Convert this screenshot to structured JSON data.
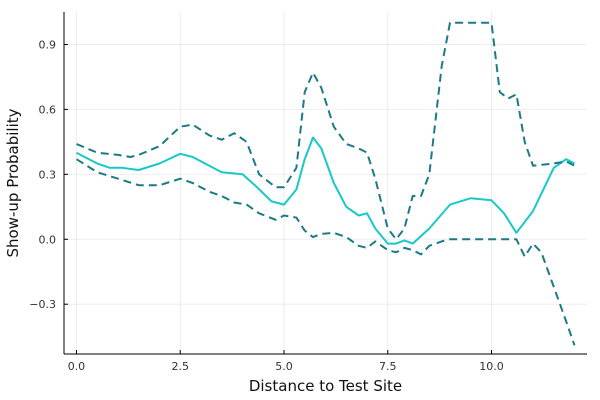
{
  "chart_data": {
    "type": "line",
    "title": "",
    "xlabel": "Distance to Test Site",
    "ylabel": "Show-up Probability",
    "xlim": [
      -0.3,
      12.3
    ],
    "ylim": [
      -0.53,
      1.05
    ],
    "xticks": [
      0,
      2.5,
      5,
      7.5,
      10
    ],
    "xtick_labels": [
      "0.0",
      "2.5",
      "5.0",
      "7.5",
      "10.0"
    ],
    "yticks": [
      -0.3,
      0,
      0.3,
      0.6,
      0.9
    ],
    "ytick_labels": [
      "−0.3",
      "0.0",
      "0.3",
      "0.6",
      "0.9"
    ],
    "grid": true,
    "legend": "none",
    "series": [
      {
        "style": "solid",
        "color": "#19c8c8",
        "x": [
          0,
          0.5,
          0.8,
          1.1,
          1.5,
          2.0,
          2.5,
          2.8,
          3.2,
          3.5,
          4.0,
          4.3,
          4.7,
          5.0,
          5.3,
          5.5,
          5.7,
          5.9,
          6.2,
          6.5,
          6.8,
          7.0,
          7.2,
          7.5,
          7.7,
          7.9,
          8.1,
          8.5,
          9.0,
          9.5,
          10.0,
          10.3,
          10.6,
          11.0,
          11.5,
          11.8,
          12.0
        ],
        "y": [
          0.4,
          0.35,
          0.33,
          0.33,
          0.32,
          0.35,
          0.395,
          0.38,
          0.34,
          0.31,
          0.3,
          0.25,
          0.175,
          0.16,
          0.23,
          0.37,
          0.47,
          0.42,
          0.26,
          0.15,
          0.11,
          0.12,
          0.05,
          -0.02,
          -0.02,
          -0.005,
          -0.02,
          0.05,
          0.16,
          0.19,
          0.18,
          0.12,
          0.03,
          0.13,
          0.33,
          0.37,
          0.35
        ]
      },
      {
        "style": "dashed",
        "color": "#1a7a8a",
        "x": [
          0,
          0.5,
          1.0,
          1.3,
          1.5,
          2.0,
          2.5,
          2.8,
          3.2,
          3.5,
          3.8,
          4.1,
          4.4,
          4.8,
          5.0,
          5.3,
          5.5,
          5.7,
          5.9,
          6.2,
          6.5,
          6.8,
          7.0,
          7.2,
          7.5,
          7.7,
          7.9,
          8.1,
          8.3,
          8.5,
          8.8,
          9.0,
          9.5,
          10.0,
          10.2,
          10.4,
          10.6,
          10.8,
          11.0,
          11.5,
          11.8,
          12.0
        ],
        "y": [
          0.44,
          0.4,
          0.39,
          0.38,
          0.39,
          0.43,
          0.52,
          0.53,
          0.48,
          0.46,
          0.49,
          0.45,
          0.3,
          0.24,
          0.24,
          0.33,
          0.68,
          0.77,
          0.7,
          0.52,
          0.44,
          0.42,
          0.4,
          0.28,
          0.05,
          0.0,
          0.05,
          0.2,
          0.2,
          0.3,
          0.8,
          1.0,
          1.0,
          1.0,
          0.68,
          0.65,
          0.67,
          0.45,
          0.34,
          0.35,
          0.36,
          0.34
        ]
      },
      {
        "style": "dashed",
        "color": "#1a7a8a",
        "x": [
          0,
          0.5,
          1.0,
          1.5,
          2.0,
          2.5,
          2.8,
          3.2,
          3.5,
          3.8,
          4.1,
          4.4,
          4.8,
          5.0,
          5.3,
          5.5,
          5.7,
          5.9,
          6.2,
          6.5,
          6.8,
          7.0,
          7.2,
          7.5,
          7.7,
          7.9,
          8.1,
          8.3,
          8.5,
          8.8,
          9.0,
          9.5,
          10.0,
          10.3,
          10.6,
          10.8,
          11.0,
          11.2,
          11.5,
          11.8,
          12.0
        ],
        "y": [
          0.37,
          0.31,
          0.28,
          0.25,
          0.25,
          0.28,
          0.26,
          0.22,
          0.2,
          0.17,
          0.16,
          0.12,
          0.09,
          0.11,
          0.1,
          0.04,
          0.01,
          0.025,
          0.03,
          0.01,
          -0.03,
          -0.04,
          -0.01,
          -0.05,
          -0.06,
          -0.04,
          -0.05,
          -0.07,
          -0.03,
          -0.01,
          0.0,
          0.0,
          0.0,
          0.0,
          0.0,
          -0.08,
          -0.02,
          -0.06,
          -0.22,
          -0.38,
          -0.49
        ]
      }
    ]
  }
}
